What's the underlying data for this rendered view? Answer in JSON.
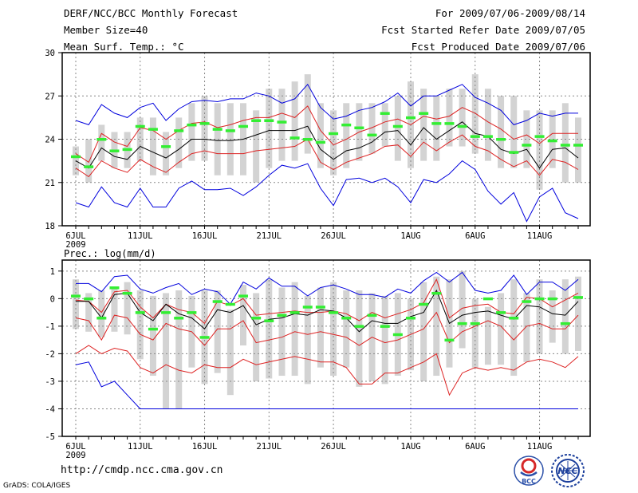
{
  "header": {
    "title": "DERF/NCC/BCC Monthly Forecast",
    "member_size": "Member Size=40",
    "variable": "Mean Surf. Temp.: °C",
    "period": "For 2009/07/06-2009/08/14",
    "started": "Fcst Started Refer Date 2009/07/05",
    "produced": "Fcst Produced Date 2009/07/06"
  },
  "footer": {
    "url": "http://cmdp.ncc.cma.gov.cn",
    "credit": "GrADS: COLA/IGES",
    "logo_bcc": "BCC",
    "logo_ncc": "NCC"
  },
  "colors": {
    "bar": "#d3d3d3",
    "median": "#33ee33",
    "mean": "#000000",
    "band": "#dd2222",
    "envelope": "#0000dd",
    "grid": "#888888"
  },
  "chart_data": [
    {
      "type": "box",
      "title": "Mean Surf. Temp.: °C",
      "xlabel": "",
      "ylabel": "",
      "ylim": [
        18,
        30
      ],
      "yticks": [
        18,
        21,
        24,
        27,
        30
      ],
      "xtick_labels": [
        "6JUL",
        "11JUL",
        "16JUL",
        "21JUL",
        "26JUL",
        "1AUG",
        "6AUG",
        "11AUG"
      ],
      "xtick_days": [
        0,
        5,
        10,
        15,
        20,
        26,
        31,
        36
      ],
      "year_label": "2009",
      "days": 40,
      "bar_low": [
        21.5,
        21.0,
        22.5,
        22.0,
        22.0,
        22.5,
        21.5,
        21.5,
        22.0,
        22.5,
        22.5,
        21.5,
        21.5,
        21.5,
        21.0,
        22.0,
        22.5,
        22.5,
        23.0,
        22.0,
        21.5,
        22.0,
        22.5,
        23.0,
        23.5,
        22.5,
        22.0,
        22.5,
        22.5,
        23.5,
        23.5,
        23.0,
        22.5,
        22.0,
        22.0,
        22.0,
        20.5,
        22.0,
        21.0,
        21.0
      ],
      "bar_high": [
        23.5,
        24.0,
        25.0,
        24.5,
        24.5,
        25.5,
        25.5,
        24.5,
        25.5,
        26.5,
        27.0,
        26.5,
        26.5,
        26.5,
        26.0,
        27.5,
        27.5,
        28.0,
        28.5,
        26.5,
        26.0,
        26.5,
        26.5,
        26.5,
        26.5,
        27.0,
        28.0,
        27.5,
        27.0,
        27.5,
        27.5,
        28.5,
        27.5,
        27.0,
        27.0,
        26.0,
        26.0,
        26.0,
        26.5,
        25.5
      ],
      "median": [
        22.8,
        22.1,
        24.0,
        23.2,
        23.3,
        24.9,
        24.7,
        23.5,
        24.6,
        25.0,
        25.1,
        24.7,
        24.6,
        24.9,
        25.3,
        25.3,
        25.2,
        24.1,
        24.0,
        23.8,
        24.4,
        25.0,
        24.8,
        24.3,
        25.8,
        24.9,
        25.5,
        25.8,
        25.1,
        25.1,
        24.9,
        24.2,
        24.2,
        24.0,
        23.1,
        23.6,
        24.2,
        23.9,
        23.6,
        23.6
      ],
      "series": [
        {
          "name": "envelope-max",
          "values": [
            25.3,
            25.0,
            26.4,
            25.8,
            25.5,
            26.2,
            26.5,
            25.3,
            26.1,
            26.6,
            26.7,
            26.6,
            26.8,
            26.8,
            27.2,
            27.0,
            26.5,
            26.8,
            27.8,
            26.2,
            25.4,
            25.6,
            26.0,
            26.2,
            26.6,
            27.2,
            26.3,
            27.0,
            27.0,
            27.4,
            27.8,
            26.9,
            26.5,
            26.0,
            25.0,
            25.3,
            25.8,
            25.6,
            25.8,
            25.8
          ]
        },
        {
          "name": "band-upper",
          "values": [
            23.0,
            22.4,
            24.4,
            23.8,
            23.5,
            24.8,
            24.6,
            24.0,
            24.6,
            25.1,
            25.2,
            24.8,
            25.0,
            25.3,
            25.5,
            25.5,
            25.8,
            25.5,
            26.3,
            24.6,
            23.6,
            24.0,
            24.5,
            24.8,
            25.2,
            25.4,
            25.0,
            25.6,
            25.4,
            25.6,
            26.2,
            25.8,
            25.2,
            24.7,
            24.0,
            24.3,
            23.7,
            24.4,
            24.4,
            24.4
          ]
        },
        {
          "name": "mean",
          "values": [
            22.5,
            22.0,
            23.4,
            22.8,
            22.6,
            23.5,
            23.1,
            22.7,
            23.3,
            24.0,
            24.0,
            23.9,
            23.9,
            24.0,
            24.3,
            24.6,
            24.6,
            24.6,
            24.9,
            23.3,
            22.6,
            23.2,
            23.4,
            23.8,
            24.5,
            24.6,
            23.6,
            24.8,
            24.0,
            24.6,
            25.2,
            24.4,
            24.2,
            23.3,
            23.0,
            23.3,
            22.0,
            23.3,
            23.4,
            22.7
          ]
        },
        {
          "name": "band-lower",
          "values": [
            22.0,
            21.4,
            22.5,
            22.0,
            21.7,
            22.6,
            22.1,
            21.7,
            22.4,
            23.0,
            23.2,
            23.0,
            23.0,
            23.0,
            23.2,
            23.3,
            23.4,
            23.5,
            24.0,
            22.4,
            21.9,
            22.4,
            22.7,
            23.0,
            23.5,
            23.6,
            22.8,
            23.8,
            23.2,
            23.8,
            24.3,
            23.5,
            23.2,
            22.6,
            22.1,
            22.5,
            21.5,
            22.6,
            22.4,
            21.9
          ]
        },
        {
          "name": "envelope-min",
          "values": [
            19.6,
            19.3,
            20.7,
            19.6,
            19.3,
            20.6,
            19.3,
            19.3,
            20.6,
            21.1,
            20.5,
            20.5,
            20.6,
            20.1,
            20.7,
            21.5,
            22.2,
            22.0,
            22.3,
            20.6,
            19.4,
            21.2,
            21.3,
            21.0,
            21.3,
            20.7,
            19.6,
            21.2,
            21.0,
            21.6,
            22.5,
            21.9,
            20.4,
            19.5,
            20.3,
            18.3,
            20.0,
            20.6,
            18.9,
            18.5
          ]
        }
      ]
    },
    {
      "type": "box",
      "title": "Prec.: log(mm/d)",
      "xlabel": "",
      "ylabel": "",
      "ylim": [
        -5,
        1.4
      ],
      "yticks": [
        -5,
        -4,
        -3,
        -2,
        -1,
        0,
        1
      ],
      "xtick_labels": [
        "6JUL",
        "11JUL",
        "16JUL",
        "21JUL",
        "26JUL",
        "1AUG",
        "6AUG",
        "11AUG"
      ],
      "xtick_days": [
        0,
        5,
        10,
        15,
        20,
        26,
        31,
        36
      ],
      "year_label": "2009",
      "days": 40,
      "bar_low": [
        -1.1,
        -1.2,
        -1.4,
        -1.2,
        -1.3,
        -2.2,
        -2.8,
        -4.0,
        -4.0,
        -2.5,
        -3.1,
        -2.7,
        -3.5,
        -1.7,
        -3.0,
        -2.9,
        -2.8,
        -2.8,
        -3.1,
        -2.5,
        -2.8,
        -2.5,
        -3.2,
        -3.0,
        -3.1,
        -2.8,
        -2.6,
        -3.0,
        -2.8,
        -2.5,
        -1.8,
        -2.5,
        -2.4,
        -2.4,
        -2.8,
        -2.3,
        -2.0,
        -1.6,
        -2.0,
        -1.9
      ],
      "bar_high": [
        0.7,
        0.2,
        0.3,
        0.4,
        0.6,
        0.3,
        0.1,
        0.2,
        0.3,
        0.1,
        0.3,
        0.3,
        -0.4,
        0.5,
        0.2,
        0.7,
        0.4,
        0.6,
        0.1,
        0.4,
        0.6,
        0.3,
        0.3,
        0.2,
        0.1,
        0.2,
        0.0,
        0.6,
        0.8,
        0.7,
        1.0,
        0.0,
        -0.3,
        0.2,
        0.7,
        0.2,
        0.7,
        0.3,
        0.7,
        0.8
      ],
      "median": [
        0.1,
        0.0,
        -0.7,
        0.4,
        0.2,
        -0.5,
        -1.1,
        -0.5,
        -0.7,
        -0.5,
        -1.4,
        -0.1,
        -0.2,
        0.1,
        -0.7,
        -0.8,
        -0.6,
        -0.5,
        -0.3,
        -0.3,
        -0.5,
        -0.7,
        -1.0,
        -0.6,
        -1.0,
        -1.3,
        -0.7,
        -0.2,
        0.2,
        -1.5,
        -0.9,
        -0.9,
        0.0,
        -0.5,
        -0.7,
        -0.1,
        0.0,
        0.0,
        -0.9,
        0.05
      ],
      "series": [
        {
          "name": "envelope-max",
          "values": [
            0.55,
            0.55,
            0.25,
            0.8,
            0.85,
            0.35,
            0.2,
            0.4,
            0.55,
            0.15,
            0.35,
            0.25,
            -0.2,
            0.6,
            0.35,
            0.75,
            0.45,
            0.45,
            0.1,
            0.4,
            0.5,
            0.35,
            0.15,
            0.15,
            0.05,
            0.35,
            0.2,
            0.65,
            0.95,
            0.6,
            0.95,
            0.3,
            0.2,
            0.3,
            0.85,
            0.15,
            0.6,
            0.6,
            0.3,
            0.7
          ]
        },
        {
          "name": "band-upper",
          "values": [
            -0.05,
            -0.1,
            -0.5,
            0.25,
            0.3,
            -0.3,
            -0.7,
            -0.2,
            -0.4,
            -0.5,
            -0.9,
            -0.1,
            -0.25,
            0.0,
            -0.6,
            -0.55,
            -0.5,
            -0.45,
            -0.5,
            -0.5,
            -0.45,
            -0.55,
            -0.8,
            -0.5,
            -0.7,
            -0.55,
            -0.4,
            -0.15,
            0.7,
            -0.7,
            -0.35,
            -0.25,
            -0.2,
            -0.5,
            -0.55,
            0.05,
            0.0,
            -0.3,
            -0.05,
            0.2
          ]
        },
        {
          "name": "mean",
          "values": [
            -0.1,
            -0.1,
            -0.7,
            0.15,
            0.2,
            -0.5,
            -0.8,
            -0.2,
            -0.55,
            -0.7,
            -1.1,
            -0.4,
            -0.5,
            -0.25,
            -0.95,
            -0.75,
            -0.7,
            -0.55,
            -0.6,
            -0.4,
            -0.45,
            -0.7,
            -1.2,
            -0.8,
            -0.9,
            -0.9,
            -0.65,
            -0.5,
            0.3,
            -0.9,
            -0.6,
            -0.5,
            -0.45,
            -0.6,
            -0.75,
            -0.25,
            -0.3,
            -0.55,
            -0.6,
            -0.1
          ]
        },
        {
          "name": "band-lower",
          "values": [
            -0.7,
            -0.8,
            -1.5,
            -0.6,
            -0.7,
            -1.3,
            -1.5,
            -0.9,
            -1.1,
            -1.2,
            -1.7,
            -1.1,
            -1.1,
            -0.8,
            -1.6,
            -1.5,
            -1.4,
            -1.2,
            -1.3,
            -1.2,
            -1.3,
            -1.4,
            -1.7,
            -1.4,
            -1.6,
            -1.5,
            -1.3,
            -1.1,
            -0.5,
            -1.6,
            -1.2,
            -1.0,
            -0.8,
            -1.0,
            -1.5,
            -1.0,
            -0.9,
            -1.1,
            -1.1,
            -0.6
          ]
        },
        {
          "name": "envelope-min-band",
          "values": [
            -2.0,
            -1.7,
            -2.0,
            -1.8,
            -1.9,
            -2.5,
            -2.7,
            -2.4,
            -2.6,
            -2.7,
            -2.4,
            -2.5,
            -2.5,
            -2.2,
            -2.4,
            -2.3,
            -2.2,
            -2.1,
            -2.2,
            -2.3,
            -2.3,
            -2.5,
            -3.1,
            -3.1,
            -2.7,
            -2.7,
            -2.5,
            -2.3,
            -2.0,
            -3.5,
            -2.7,
            -2.5,
            -2.6,
            -2.5,
            -2.6,
            -2.3,
            -2.2,
            -2.3,
            -2.5,
            -2.1
          ]
        },
        {
          "name": "envelope-min",
          "values": [
            -2.4,
            -2.3,
            -3.2,
            -3.0,
            -3.5,
            -4.0,
            -4.0,
            -4.0,
            -4.0,
            -4.0,
            -4.0,
            -4.0,
            -4.0,
            -4.0,
            -4.0,
            -4.0,
            -4.0,
            -4.0,
            -4.0,
            -4.0,
            -4.0,
            -4.0,
            -4.0,
            -4.0,
            -4.0,
            -4.0,
            -4.0,
            -4.0,
            -4.0,
            -4.0,
            -4.0,
            -4.0,
            -4.0,
            -4.0,
            -4.0,
            -4.0,
            -4.0,
            -4.0,
            -4.0,
            -4.0
          ]
        }
      ]
    }
  ]
}
